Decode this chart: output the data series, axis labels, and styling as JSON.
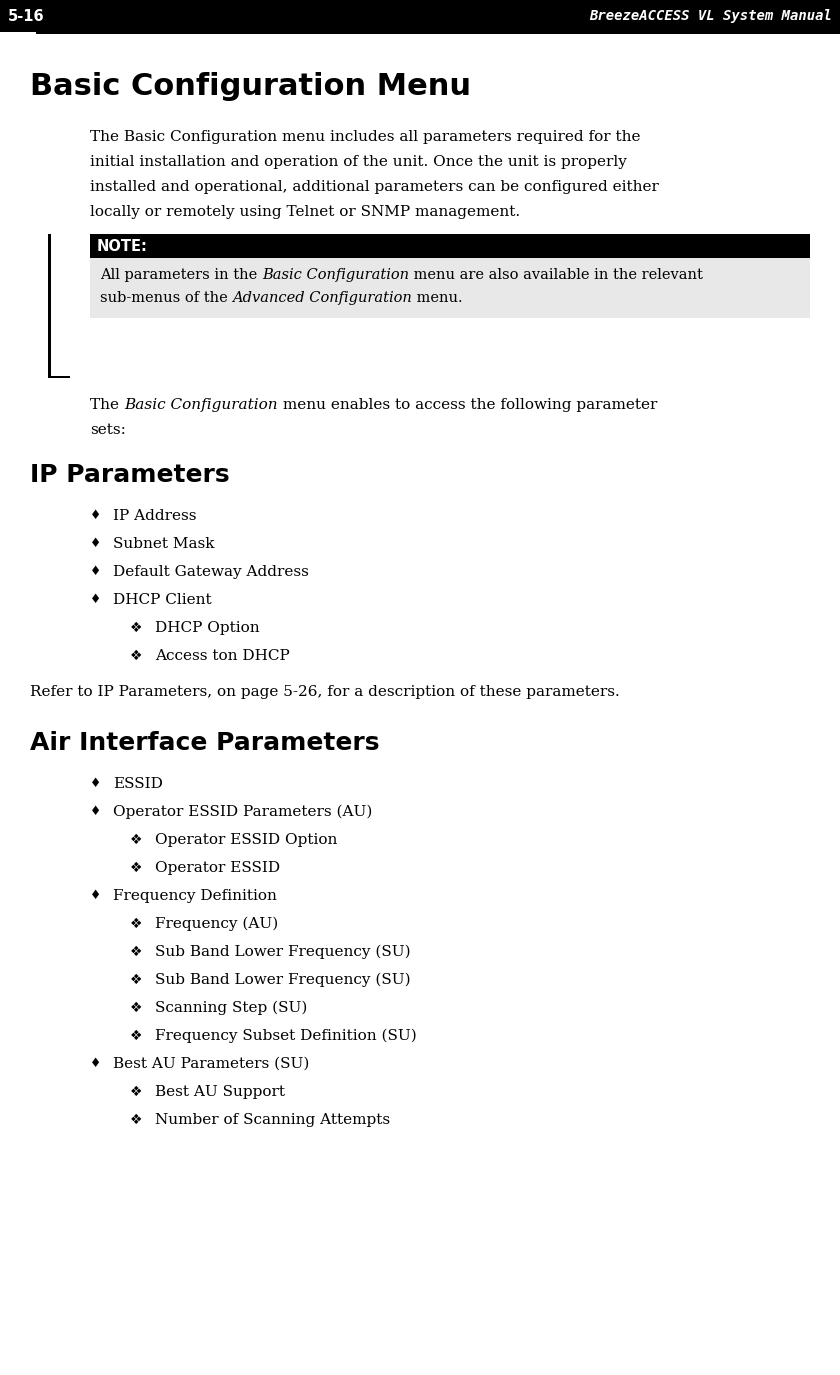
{
  "page_num": "5-16",
  "header_title": "BreezeACCESS VL System Manual",
  "bg_color": "#ffffff",
  "header_bg": "#000000",
  "header_text_color": "#ffffff",
  "section_title": "Basic Configuration Menu",
  "para1": "The Basic Configuration menu includes all parameters required for the initial installation and operation of the unit. Once the unit is properly installed and operational, additional parameters can be configured either locally or remotely using Telnet or SNMP management.",
  "note_label": "NOTE:",
  "note_label_bg": "#000000",
  "note_label_color": "#ffffff",
  "note_body_bg": "#e8e8e8",
  "subsection1": "IP Parameters",
  "ip_refer": "Refer to IP Parameters, on page 5-26, for a description of these parameters.",
  "subsection2": "Air Interface Parameters",
  "ip_bullets": [
    {
      "type": "diamond",
      "text": "IP Address"
    },
    {
      "type": "diamond",
      "text": "Subnet Mask"
    },
    {
      "type": "diamond",
      "text": "Default Gateway Address"
    },
    {
      "type": "diamond",
      "text": "DHCP Client"
    },
    {
      "type": "fleur",
      "text": "DHCP Option"
    },
    {
      "type": "fleur",
      "text": "Access ton DHCP"
    }
  ],
  "air_bullets": [
    {
      "type": "diamond",
      "indent": 1,
      "text": "ESSID"
    },
    {
      "type": "diamond",
      "indent": 1,
      "text": "Operator ESSID Parameters (AU)"
    },
    {
      "type": "fleur",
      "indent": 2,
      "text": "Operator ESSID Option"
    },
    {
      "type": "fleur",
      "indent": 2,
      "text": "Operator ESSID"
    },
    {
      "type": "diamond",
      "indent": 1,
      "text": "Frequency Definition"
    },
    {
      "type": "fleur",
      "indent": 2,
      "text": "Frequency (AU)"
    },
    {
      "type": "fleur",
      "indent": 2,
      "text": "Sub Band Lower Frequency (SU)"
    },
    {
      "type": "fleur",
      "indent": 2,
      "text": "Sub Band Lower Frequency (SU)"
    },
    {
      "type": "fleur",
      "indent": 2,
      "text": "Scanning Step (SU)"
    },
    {
      "type": "fleur",
      "indent": 2,
      "text": "Frequency Subset Definition (SU)"
    },
    {
      "type": "diamond",
      "indent": 1,
      "text": "Best AU Parameters (SU)"
    },
    {
      "type": "fleur",
      "indent": 2,
      "text": "Best AU Support"
    },
    {
      "type": "fleur",
      "indent": 2,
      "text": "Number of Scanning Attempts"
    }
  ]
}
